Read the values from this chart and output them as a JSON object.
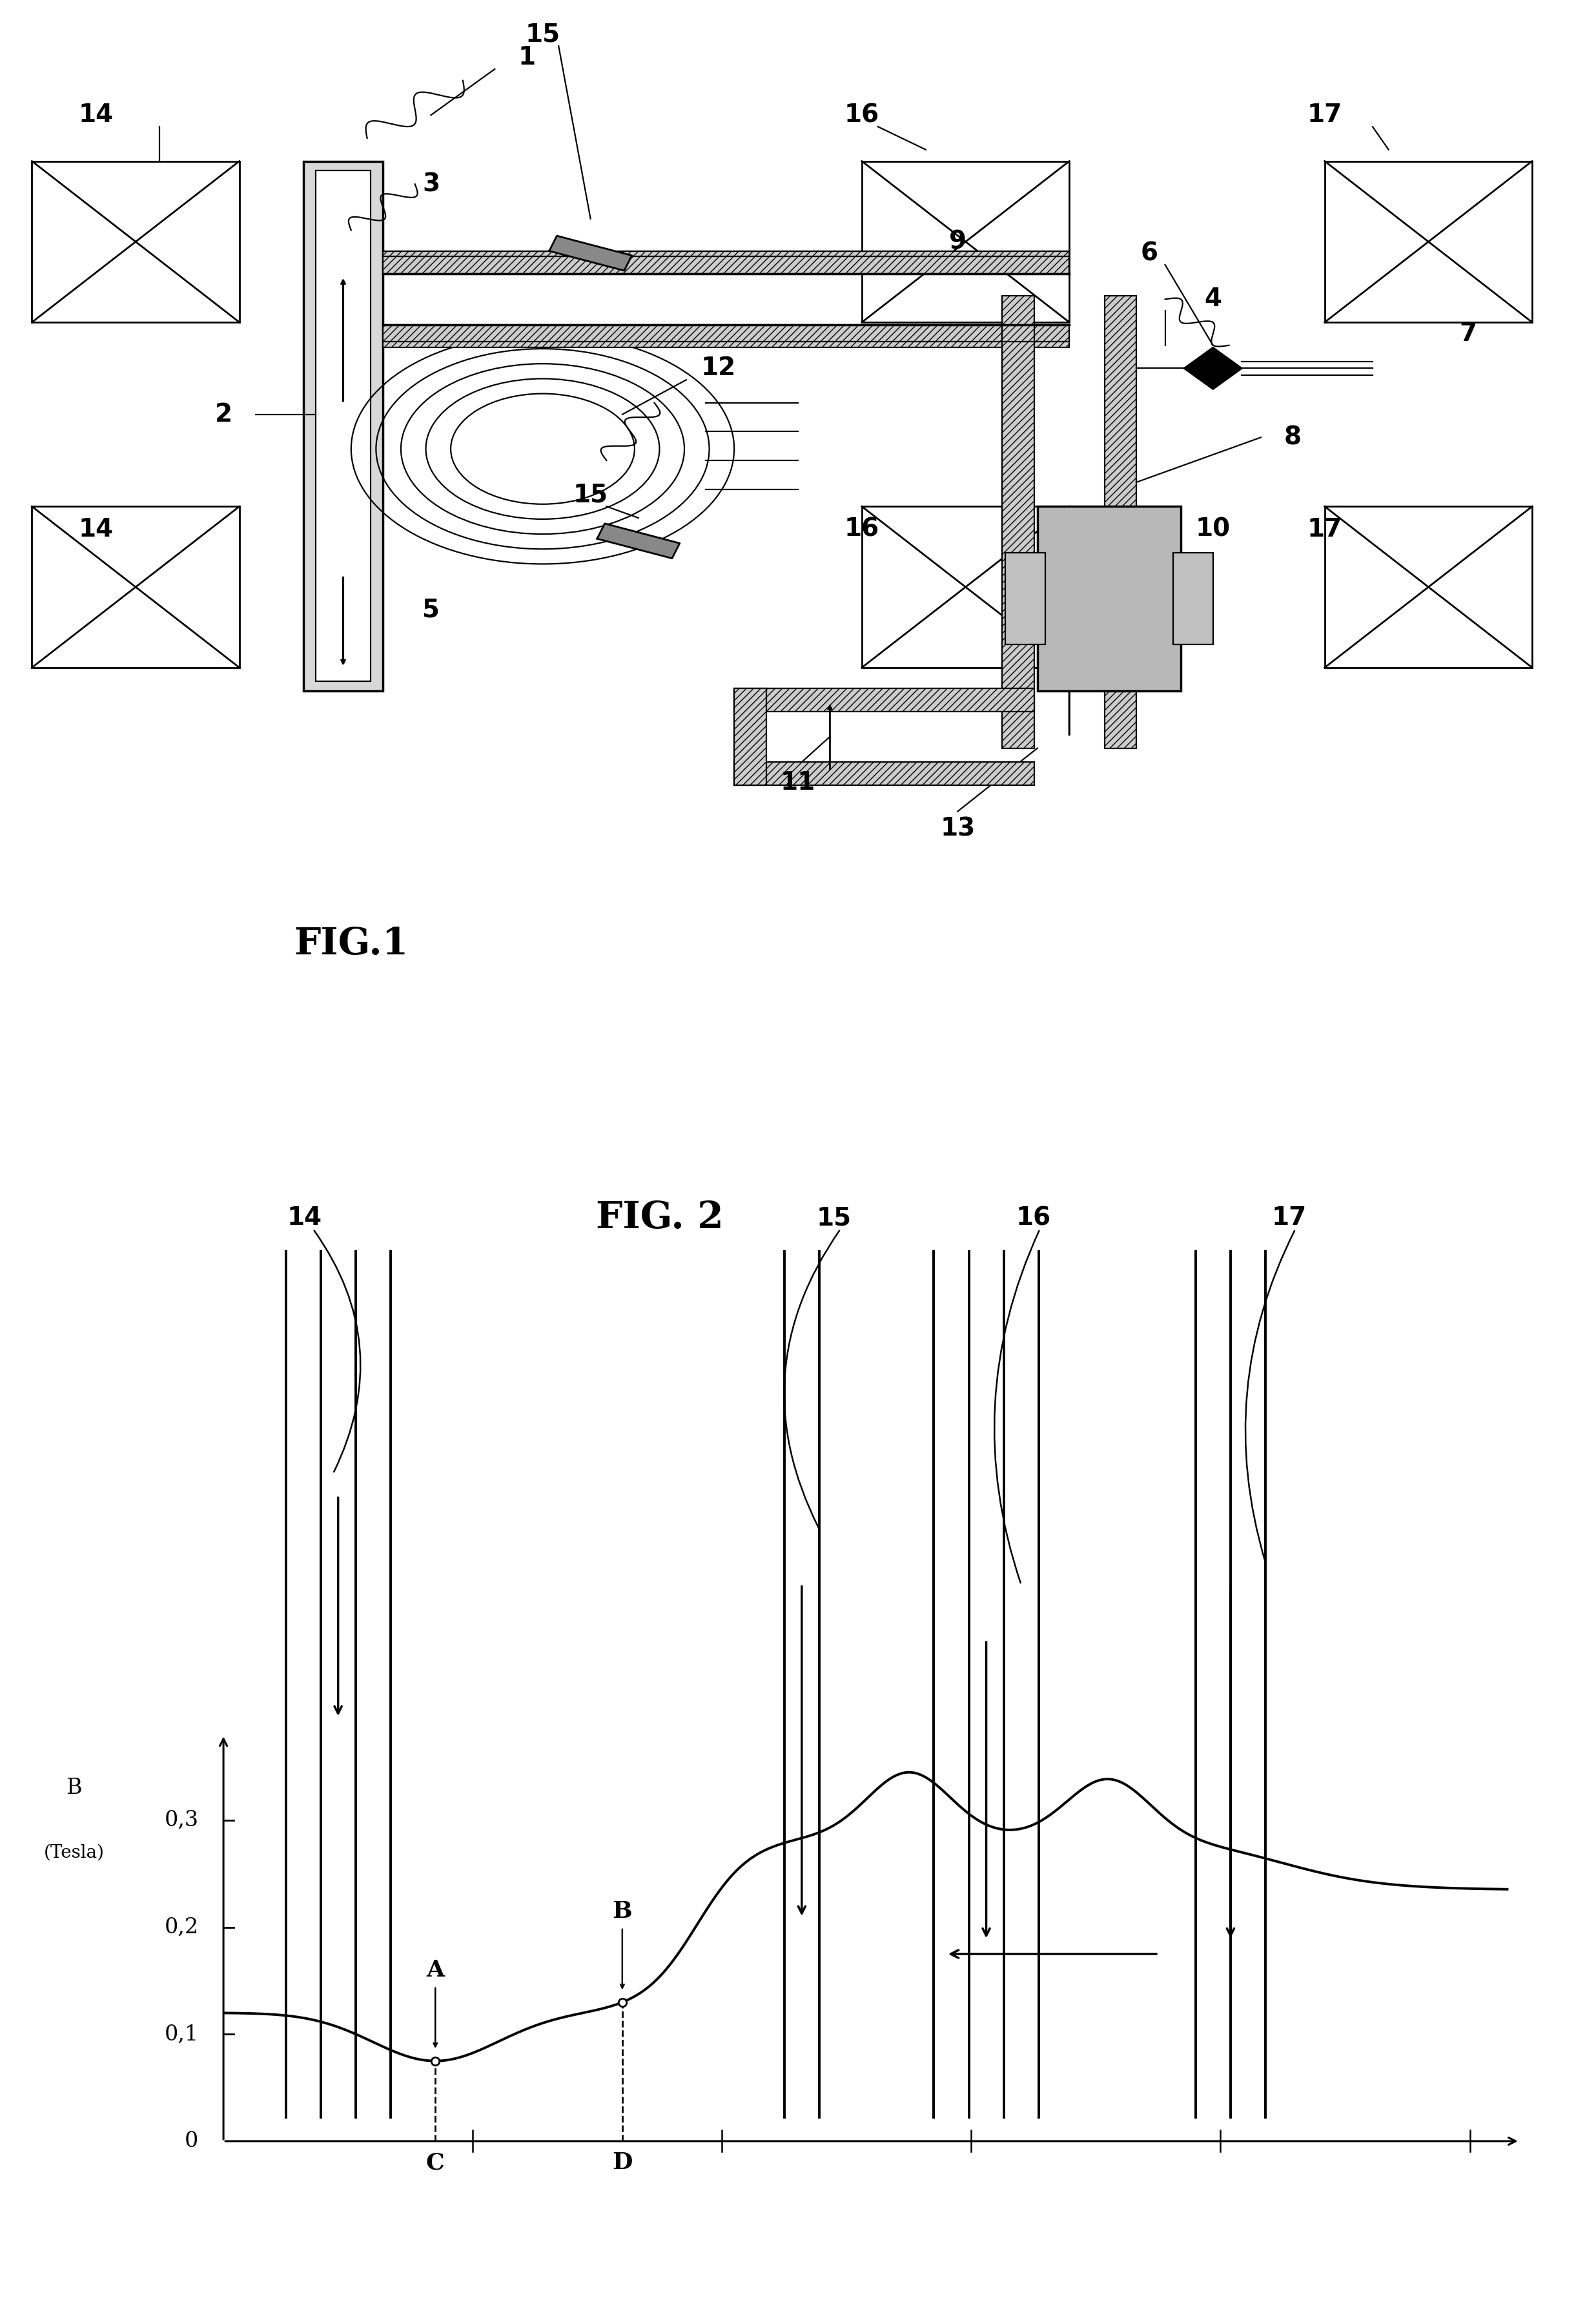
{
  "fig_width": 24.72,
  "fig_height": 35.65,
  "bg_color": "#ffffff",
  "fig1_title": "FIG.1",
  "fig2_title": "FIG. 2",
  "label_fs": 28,
  "title_fs": 42,
  "ylabel_fs": 26,
  "ytick_labels": [
    "0",
    "0,1",
    "0,2",
    "0,3"
  ],
  "ytick_vals": [
    0,
    0.1,
    0.2,
    0.3
  ]
}
